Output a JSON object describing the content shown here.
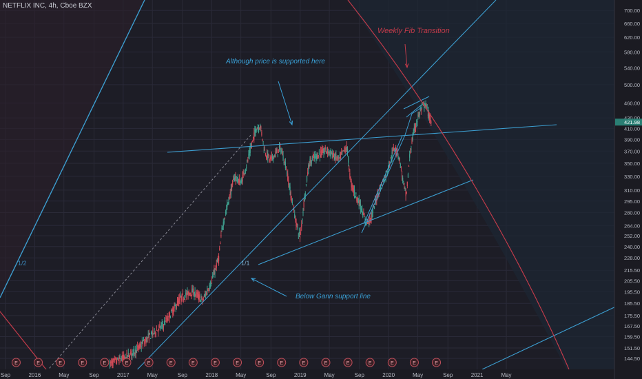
{
  "header": {
    "symbol_line": "NETFLIX INC, 4h, Cboe BZX"
  },
  "colors": {
    "background": "#1d1d26",
    "grid": "#2a2a38",
    "bull": "#3fa08f",
    "bear": "#d04a57",
    "trend_line": "#3c9dcf",
    "fib_arc": "#c33b4a",
    "annotation_blue": "#3aa0d6",
    "annotation_red": "#c33b4a",
    "price_label_bg": "#2a7f74"
  },
  "chart_data": {
    "type": "candlestick",
    "title": "",
    "ylabel": "",
    "xlabel": "",
    "y_scale": "log",
    "ylim": [
      141,
      716
    ],
    "current_price": 421.98,
    "y_ticks": [
      700.0,
      660.0,
      620.0,
      580.0,
      540.0,
      500.0,
      460.0,
      430.0,
      410.0,
      390.0,
      370.0,
      350.0,
      330.0,
      310.0,
      295.0,
      280.0,
      264.0,
      252.0,
      240.0,
      228.0,
      215.5,
      205.5,
      195.5,
      185.5,
      175.5,
      167.5,
      159.5,
      151.5,
      144.5
    ],
    "y_tick_labels": [
      "700.00",
      "660.00",
      "620.00",
      "580.00",
      "540.00",
      "500.00",
      "460.00",
      "430.00",
      "410.00",
      "390.00",
      "370.00",
      "350.00",
      "330.00",
      "310.00",
      "295.00",
      "280.00",
      "264.00",
      "252.00",
      "240.00",
      "228.00",
      "215.50",
      "205.50",
      "195.50",
      "185.50",
      "175.50",
      "167.50",
      "159.50",
      "151.50",
      "144.50"
    ],
    "x_ticks": [
      {
        "label": "Sep",
        "t": 2015.67
      },
      {
        "label": "2016",
        "t": 2016.0
      },
      {
        "label": "May",
        "t": 2016.33
      },
      {
        "label": "Sep",
        "t": 2016.67
      },
      {
        "label": "2017",
        "t": 2017.0
      },
      {
        "label": "May",
        "t": 2017.33
      },
      {
        "label": "Sep",
        "t": 2017.67
      },
      {
        "label": "2018",
        "t": 2018.0
      },
      {
        "label": "May",
        "t": 2018.33
      },
      {
        "label": "Sep",
        "t": 2018.67
      },
      {
        "label": "2019",
        "t": 2019.0
      },
      {
        "label": "May",
        "t": 2019.33
      },
      {
        "label": "Sep",
        "t": 2019.67
      },
      {
        "label": "2020",
        "t": 2020.0
      },
      {
        "label": "May",
        "t": 2020.33
      },
      {
        "label": "Sep",
        "t": 2020.67
      },
      {
        "label": "2021",
        "t": 2021.0
      },
      {
        "label": "May",
        "t": 2021.33
      }
    ],
    "xlim": [
      2015.62,
      2022.72
    ],
    "price_path": [
      [
        2016.85,
        141
      ],
      [
        2017.05,
        146
      ],
      [
        2017.15,
        150
      ],
      [
        2017.3,
        160
      ],
      [
        2017.45,
        168
      ],
      [
        2017.55,
        178
      ],
      [
        2017.65,
        190
      ],
      [
        2017.78,
        196
      ],
      [
        2017.9,
        188
      ],
      [
        2018.0,
        205
      ],
      [
        2018.08,
        228
      ],
      [
        2018.12,
        262
      ],
      [
        2018.2,
        300
      ],
      [
        2018.26,
        330
      ],
      [
        2018.33,
        320
      ],
      [
        2018.4,
        350
      ],
      [
        2018.46,
        385
      ],
      [
        2018.5,
        410
      ],
      [
        2018.55,
        415
      ],
      [
        2018.6,
        370
      ],
      [
        2018.66,
        355
      ],
      [
        2018.72,
        365
      ],
      [
        2018.78,
        375
      ],
      [
        2018.84,
        345
      ],
      [
        2018.9,
        300
      ],
      [
        2018.96,
        265
      ],
      [
        2019.0,
        250
      ],
      [
        2019.05,
        300
      ],
      [
        2019.1,
        350
      ],
      [
        2019.16,
        360
      ],
      [
        2019.22,
        365
      ],
      [
        2019.3,
        372
      ],
      [
        2019.38,
        362
      ],
      [
        2019.44,
        356
      ],
      [
        2019.5,
        372
      ],
      [
        2019.53,
        376
      ],
      [
        2019.57,
        322
      ],
      [
        2019.62,
        305
      ],
      [
        2019.68,
        290
      ],
      [
        2019.74,
        268
      ],
      [
        2019.8,
        272
      ],
      [
        2019.86,
        298
      ],
      [
        2019.92,
        318
      ],
      [
        2019.97,
        332
      ],
      [
        2020.03,
        360
      ],
      [
        2020.07,
        378
      ],
      [
        2020.12,
        360
      ],
      [
        2020.16,
        325
      ],
      [
        2020.2,
        300
      ],
      [
        2020.24,
        365
      ],
      [
        2020.28,
        400
      ],
      [
        2020.33,
        430
      ],
      [
        2020.37,
        448
      ],
      [
        2020.41,
        458
      ],
      [
        2020.45,
        440
      ],
      [
        2020.48,
        420
      ]
    ],
    "earnings_markers": [
      "E",
      "E",
      "E",
      "E",
      "E",
      "E",
      "E",
      "E",
      "E",
      "E",
      "E",
      "E",
      "E",
      "E",
      "E",
      "E",
      "E",
      "E",
      "E",
      "E"
    ],
    "earnings_t": [
      2015.79,
      2016.04,
      2016.29,
      2016.54,
      2016.79,
      2017.04,
      2017.29,
      2017.54,
      2017.79,
      2018.04,
      2018.29,
      2018.54,
      2018.79,
      2019.04,
      2019.29,
      2019.54,
      2019.79,
      2020.04,
      2020.29,
      2020.54
    ],
    "annotations": [
      {
        "text": "Weekly Fib Transition",
        "color": "red"
      },
      {
        "text": "Although price is supported here",
        "color": "blue"
      },
      {
        "text": "Below Gann support line",
        "color": "blue"
      },
      {
        "text": "1/1",
        "color": "blue"
      },
      {
        "text": "1/2",
        "color": "blue"
      }
    ],
    "grid": true,
    "legend": "none"
  }
}
